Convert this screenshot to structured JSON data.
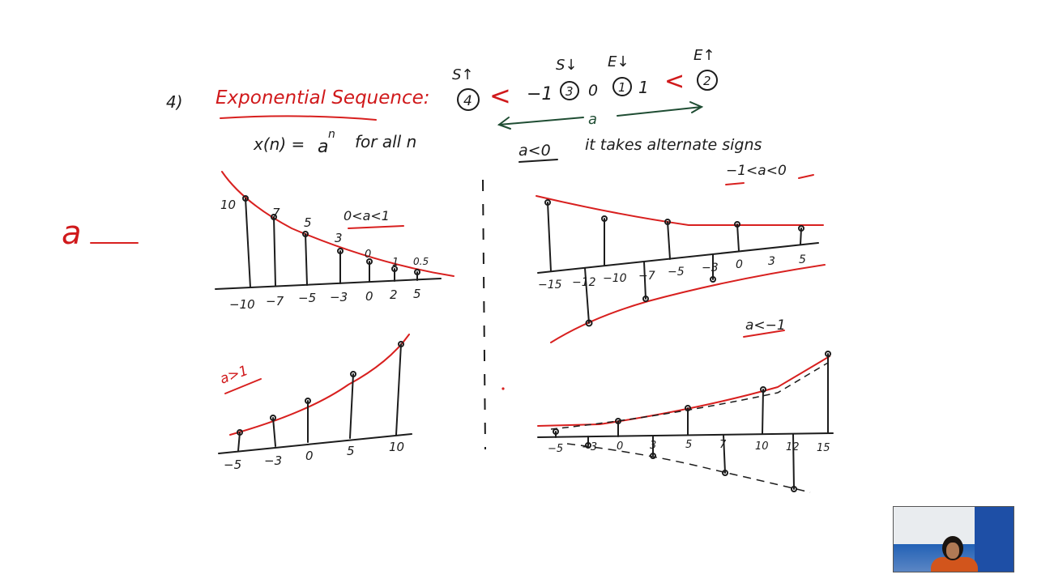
{
  "heading": {
    "number": "4)",
    "title": "Exponential Sequence:",
    "formula_lhs": "x(n) =",
    "formula_base": "a",
    "formula_exp": "n",
    "formula_tail": "for all n"
  },
  "range_line": {
    "region4": "4",
    "region3": "3",
    "region1": "1",
    "region2": "2",
    "lt": "<",
    "minus_one": "−1",
    "zero": "0",
    "one": "1",
    "label_st": "S↑",
    "label_sd": "S↓",
    "label_ed": "E↓",
    "label_eu": "E↑",
    "axis_var": "a",
    "cond_neg": "a<0",
    "alternate_text": "it takes alternate signs"
  },
  "side_mark": "a",
  "graph_tl": {
    "cond": "0<a<1",
    "point_labels": [
      "10",
      "7",
      "5",
      "3",
      "0",
      "1",
      "0.5"
    ],
    "x_ticks": [
      "−10",
      "−7",
      "−5",
      "−3",
      "0",
      "2",
      "5"
    ]
  },
  "graph_bl": {
    "cond": "a>1",
    "x_ticks": [
      "−5",
      "−3",
      "0",
      "5",
      "10"
    ]
  },
  "graph_tr": {
    "cond": "−1<a<0",
    "x_ticks": [
      "−15",
      "−12",
      "−10",
      "−7",
      "−5",
      "−3",
      "0",
      "3",
      "5"
    ]
  },
  "graph_br": {
    "cond": "a<−1",
    "x_ticks": [
      "−5",
      "−3",
      "0",
      "3",
      "5",
      "7",
      "10",
      "12",
      "15"
    ]
  },
  "webcam": {
    "icon": "presenter-webcam"
  }
}
